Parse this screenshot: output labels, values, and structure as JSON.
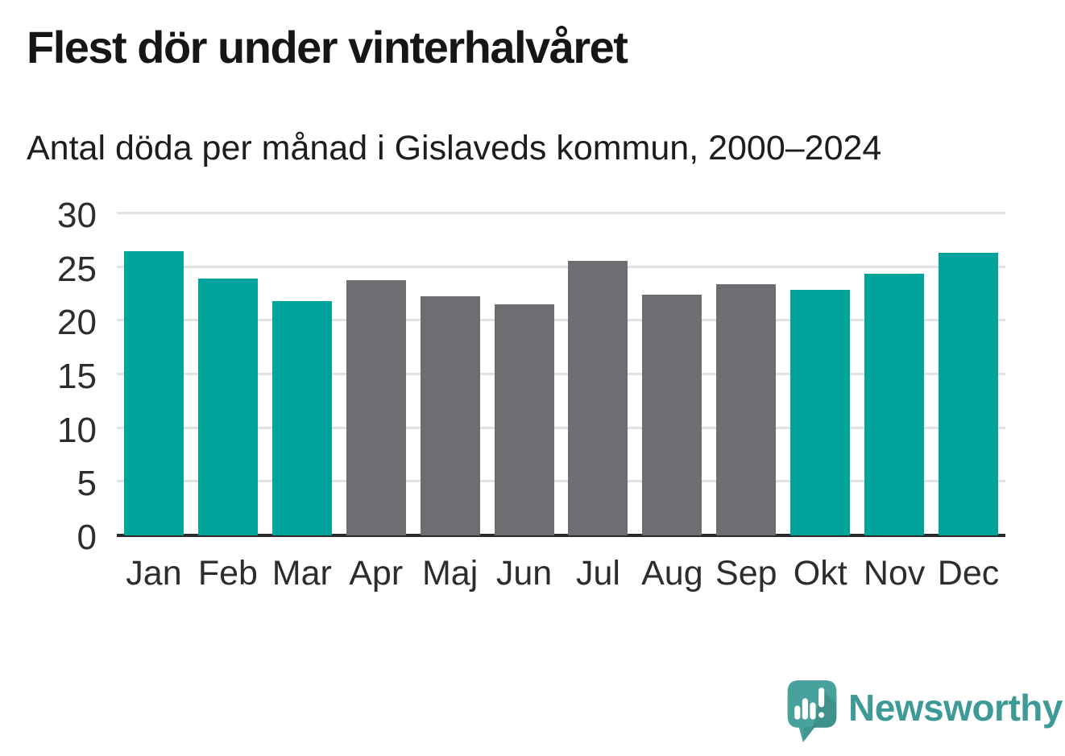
{
  "header": {
    "title": "Flest dör under vinterhalvåret",
    "subtitle": "Antal döda per månad i Gislaveds kommun, 2000–2024"
  },
  "chart_data": {
    "type": "bar",
    "title": "Flest dör under vinterhalvåret",
    "subtitle": "Antal döda per månad i Gislaveds kommun, 2000–2024",
    "categories": [
      "Jan",
      "Feb",
      "Mar",
      "Apr",
      "Maj",
      "Jun",
      "Jul",
      "Aug",
      "Sep",
      "Okt",
      "Nov",
      "Dec"
    ],
    "values": [
      26.5,
      23.9,
      21.8,
      23.8,
      22.3,
      21.5,
      25.6,
      22.4,
      23.4,
      22.9,
      24.4,
      26.3
    ],
    "bar_colors": [
      "#00a49b",
      "#00a49b",
      "#00a49b",
      "#6d6d72",
      "#6d6d72",
      "#6d6d72",
      "#6d6d72",
      "#6d6d72",
      "#6d6d72",
      "#00a49b",
      "#00a49b",
      "#00a49b"
    ],
    "highlight_color": "#00a49b",
    "neutral_color": "#6d6d72",
    "xlabel": "",
    "ylabel": "",
    "ylim": [
      0,
      30
    ],
    "yticks": [
      0,
      5,
      10,
      15,
      20,
      25,
      30
    ],
    "grid": "horizontal gridlines at each y tick, legend none",
    "gridline_color": "#e2e2e2",
    "axis_color": "#2a2a2a"
  },
  "footer": {
    "brand": "Newsworthy",
    "brand_color": "#3d9a96",
    "logo_color": "#47a29c"
  }
}
